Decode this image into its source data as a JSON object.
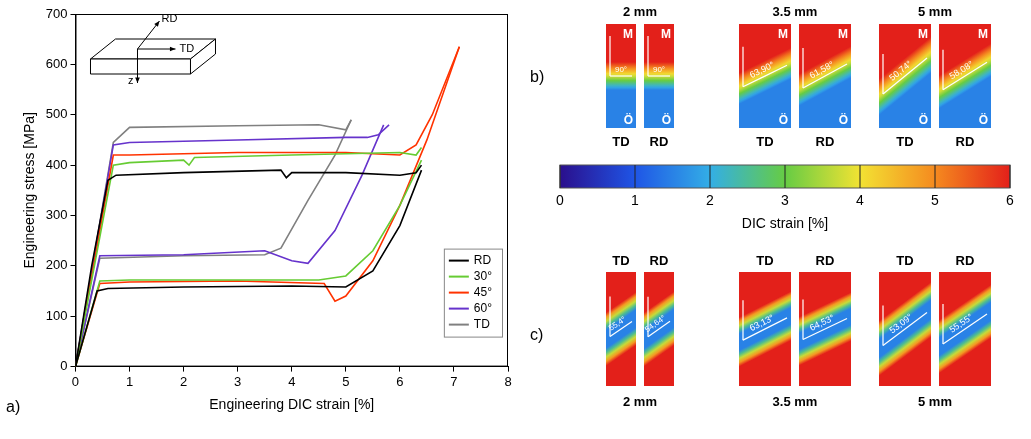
{
  "chart_data": {
    "type": "line",
    "label": "a)",
    "x_label": "Engineering DIC strain [%]",
    "y_label": "Engineering stress [MPa]",
    "xlim": [
      0,
      8
    ],
    "xticks": [
      0,
      1,
      2,
      3,
      4,
      5,
      6,
      7,
      8
    ],
    "ylim": [
      0,
      700
    ],
    "yticks": [
      0,
      100,
      200,
      300,
      400,
      500,
      600,
      700
    ],
    "grid": false,
    "legend": "bottom right",
    "inset": {
      "labels": [
        "RD",
        "TD",
        "z"
      ]
    },
    "series": [
      {
        "name": "RD",
        "color": "#000000",
        "x": [
          0,
          0.3,
          0.6,
          0.75,
          2,
          3.8,
          3.9,
          4,
          5,
          6,
          6.3,
          6.4,
          null,
          0,
          0.4,
          0.6,
          2,
          4,
          5,
          5.5,
          6,
          6.4
        ],
        "values": [
          0,
          200,
          370,
          380,
          385,
          390,
          375,
          385,
          385,
          380,
          385,
          400,
          null,
          0,
          150,
          155,
          158,
          160,
          158,
          190,
          280,
          390
        ]
      },
      {
        "name": "30°",
        "color": "#66cc33",
        "x": [
          0,
          0.7,
          1,
          2,
          2.1,
          2.2,
          4,
          6,
          6.3,
          6.4,
          null,
          0,
          0.45,
          1,
          3,
          4.5,
          5,
          5.5,
          6,
          6.4
        ],
        "values": [
          0,
          400,
          405,
          410,
          400,
          415,
          420,
          425,
          420,
          435,
          null,
          0,
          170,
          172,
          172,
          172,
          180,
          230,
          320,
          410
        ]
      },
      {
        "name": "45°",
        "color": "#ff3300",
        "x": [
          0,
          0.7,
          1,
          3,
          5,
          6,
          6.3,
          6.6,
          7.1,
          null,
          0,
          0.45,
          1,
          3,
          4.6,
          4.8,
          5,
          5.5,
          6,
          6.5,
          7.1
        ],
        "values": [
          0,
          420,
          420,
          425,
          425,
          420,
          440,
          500,
          635,
          null,
          0,
          165,
          168,
          170,
          165,
          130,
          140,
          210,
          320,
          450,
          635
        ]
      },
      {
        "name": "60°",
        "color": "#6633cc",
        "x": [
          0,
          0.7,
          1,
          3,
          5,
          5.4,
          5.6,
          5.8,
          null,
          0,
          0.45,
          2,
          3.5,
          4,
          4.3,
          4.8,
          5.3,
          5.7
        ],
        "values": [
          0,
          440,
          445,
          450,
          455,
          455,
          460,
          480,
          null,
          0,
          220,
          222,
          230,
          210,
          205,
          270,
          380,
          480
        ]
      },
      {
        "name": "TD",
        "color": "#808080",
        "x": [
          0,
          0.7,
          1,
          3,
          4.5,
          5,
          5.1,
          null,
          0,
          0.45,
          2,
          3.5,
          3.8,
          4.3,
          4.8,
          5.1
        ],
        "values": [
          0,
          445,
          475,
          478,
          480,
          470,
          490,
          null,
          0,
          215,
          220,
          222,
          235,
          330,
          420,
          490
        ]
      }
    ]
  },
  "strain_maps": {
    "colorbar": {
      "label": "DIC strain [%]",
      "range": [
        0,
        6
      ],
      "ticks": [
        0,
        1,
        2,
        3,
        4,
        5,
        6
      ]
    },
    "panels": [
      {
        "label": "b)",
        "kind": "front",
        "levels": {
          "upper": 6,
          "lower": 1.5
        },
        "top_mark": "M",
        "bottom_mark": "Ö",
        "groups": [
          {
            "title": "2 mm",
            "maps": [
              {
                "name": "TD",
                "angle": {
                  "value": 90,
                  "label": "90°"
                }
              },
              {
                "name": "RD",
                "angle": {
                  "value": 90,
                  "label": "90°"
                }
              }
            ]
          },
          {
            "title": "3.5 mm",
            "maps": [
              {
                "name": "TD",
                "angle": {
                  "value": 63.9,
                  "label": "63,90°"
                }
              },
              {
                "name": "RD",
                "angle": {
                  "value": 61.58,
                  "label": "61,58°"
                }
              }
            ]
          },
          {
            "title": "5 mm",
            "maps": [
              {
                "name": "TD",
                "angle": {
                  "value": 50.74,
                  "label": "50,74°"
                }
              },
              {
                "name": "RD",
                "angle": {
                  "value": 58.08,
                  "label": "58,08°"
                }
              }
            ]
          }
        ]
      },
      {
        "label": "c)",
        "kind": "band",
        "levels": {
          "outside": 6,
          "band": 1.5
        },
        "groups": [
          {
            "title": "2 mm",
            "maps": [
              {
                "name": "TD",
                "angle": {
                  "value": 55.4,
                  "label": "55,4°"
                }
              },
              {
                "name": "RD",
                "angle": {
                  "value": 54.64,
                  "label": "54,64°"
                }
              }
            ]
          },
          {
            "title": "3.5 mm",
            "maps": [
              {
                "name": "TD",
                "angle": {
                  "value": 63.13,
                  "label": "63,13°"
                }
              },
              {
                "name": "RD",
                "angle": {
                  "value": 64.53,
                  "label": "64,53°"
                }
              }
            ]
          },
          {
            "title": "5 mm",
            "maps": [
              {
                "name": "TD",
                "angle": {
                  "value": 53.09,
                  "label": "53,09°"
                }
              },
              {
                "name": "RD",
                "angle": {
                  "value": 55.55,
                  "label": "55,55°"
                }
              }
            ]
          }
        ]
      }
    ]
  }
}
